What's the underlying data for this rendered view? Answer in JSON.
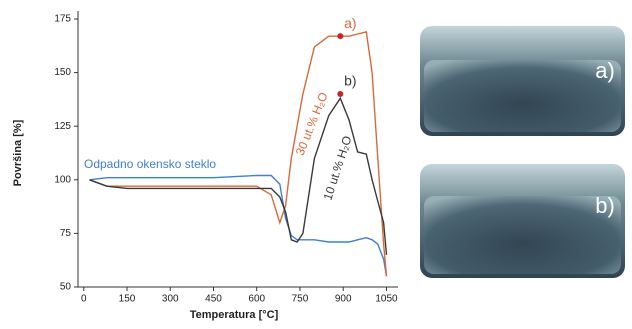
{
  "chart_data": {
    "type": "line",
    "xlabel": "Temperatura [°C]",
    "ylabel": "Površina [%]",
    "x": [
      20,
      80,
      150,
      300,
      450,
      600,
      650,
      680,
      700,
      720,
      740,
      760,
      800,
      850,
      890,
      920,
      950,
      980,
      1000,
      1020,
      1040,
      1050
    ],
    "series": [
      {
        "name": "Odpadno okensko steklo",
        "color": "#3f7fd6",
        "values": [
          100,
          101,
          101,
          101,
          101,
          102,
          102,
          98,
          82,
          74,
          72,
          72,
          72,
          71,
          71,
          71,
          72,
          73,
          72,
          70,
          63,
          55
        ]
      },
      {
        "name": "30 ut.% H₂O",
        "color": "#d9693a",
        "values": [
          100,
          97,
          97,
          97,
          97,
          97,
          93,
          80,
          88,
          110,
          125,
          140,
          162,
          167,
          167,
          167,
          168,
          169,
          150,
          110,
          70,
          55
        ]
      },
      {
        "name": "10 ut.% H₂O",
        "color": "#3a3a3a",
        "values": [
          100,
          97,
          96,
          96,
          96,
          96,
          96,
          92,
          85,
          72,
          71,
          75,
          110,
          130,
          138,
          128,
          113,
          112,
          100,
          90,
          80,
          65
        ]
      }
    ],
    "annotations": [
      {
        "text": "a)",
        "x": 890,
        "y": 167
      },
      {
        "text": "b)",
        "x": 890,
        "y": 140
      }
    ],
    "marker_color": "#cc2222",
    "xlim": [
      -20,
      1090
    ],
    "xticks": [
      0,
      150,
      300,
      450,
      600,
      750,
      900,
      1050
    ],
    "ylim": [
      50,
      175
    ],
    "yticks": [
      50,
      75,
      100,
      125,
      150,
      175
    ]
  },
  "photos": [
    {
      "label": "a)"
    },
    {
      "label": "b)"
    }
  ]
}
